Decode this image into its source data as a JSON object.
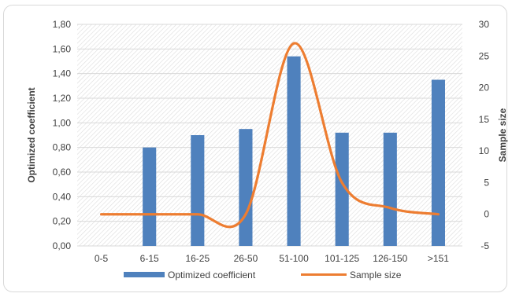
{
  "chart_data": {
    "type": "bar",
    "categories": [
      "0-5",
      "6-15",
      "16-25",
      "26-50",
      "51-100",
      "101-125",
      "126-150",
      ">151"
    ],
    "series": [
      {
        "name": "Optimized coefficient",
        "type": "bar",
        "axis": "left",
        "color": "#4f81bd",
        "values": [
          0,
          0.8,
          0.9,
          0.95,
          1.54,
          0.92,
          0.92,
          1.35
        ]
      },
      {
        "name": "Sample size",
        "type": "line",
        "smooth": true,
        "axis": "right",
        "color": "#ed7d31",
        "values": [
          0,
          0,
          0,
          0,
          27,
          5,
          1,
          0
        ]
      }
    ],
    "ylabel": "Optimized coefficient",
    "y2label": "Sample size",
    "ylim": [
      0,
      1.8
    ],
    "y2lim": [
      -5,
      30
    ],
    "yticks": [
      "0,00",
      "0,20",
      "0,40",
      "0,60",
      "0,80",
      "1,00",
      "1,20",
      "1,40",
      "1,60",
      "1,80"
    ],
    "y2ticks": [
      "-5",
      "0",
      "5",
      "10",
      "15",
      "20",
      "25",
      "30"
    ],
    "grid": true,
    "legend_position": "bottom",
    "plot_background": "hatched"
  }
}
